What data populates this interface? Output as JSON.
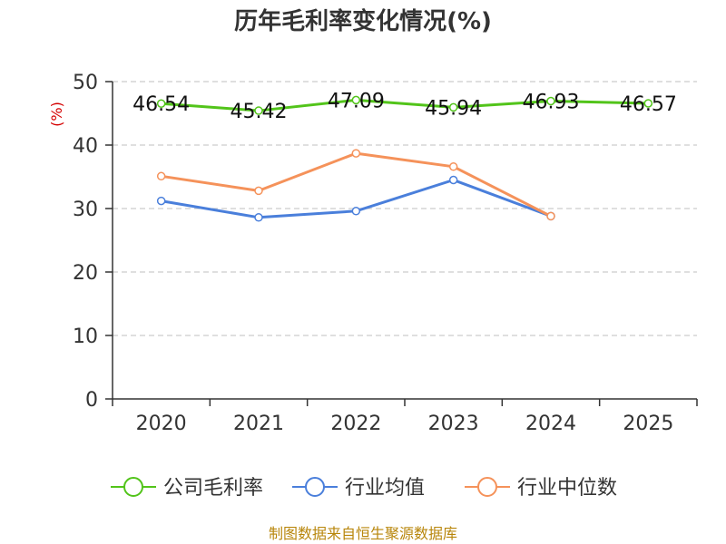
{
  "chart_data": {
    "type": "line",
    "title": "历年毛利率变化情况(%)",
    "ylabel": "(%)",
    "xlabel": "",
    "categories": [
      "2020",
      "2021",
      "2022",
      "2023",
      "2024",
      "2025"
    ],
    "ylim": [
      0,
      50
    ],
    "yticks": [
      "0",
      "10",
      "20",
      "30",
      "40",
      "50"
    ],
    "grid": true,
    "legend_position": "bottom",
    "series": [
      {
        "name": "公司毛利率",
        "color": "#52c41a",
        "values": [
          46.54,
          45.42,
          47.09,
          45.94,
          46.93,
          46.57
        ],
        "labels": [
          "46.54",
          "45.42",
          "47.09",
          "45.94",
          "46.93",
          "46.57"
        ]
      },
      {
        "name": "行业均值",
        "color": "#4a7fdb",
        "values": [
          31.2,
          28.6,
          29.6,
          34.5,
          28.8,
          null
        ]
      },
      {
        "name": "行业中位数",
        "color": "#f5925a",
        "values": [
          35.1,
          32.8,
          38.7,
          36.6,
          28.8,
          null
        ]
      }
    ]
  },
  "source": "制图数据来自恒生聚源数据库"
}
